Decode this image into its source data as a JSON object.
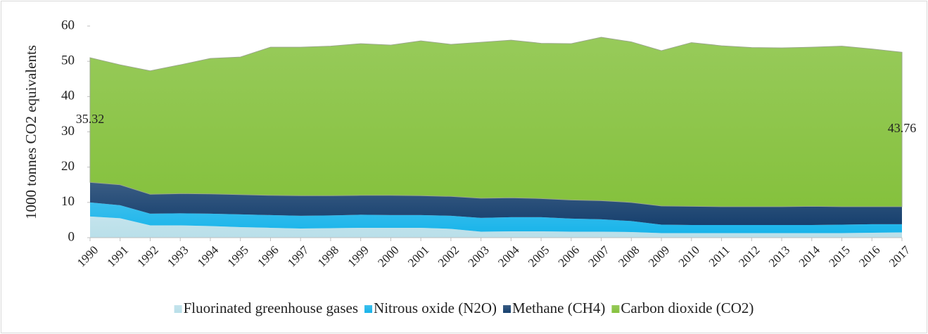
{
  "chart_data": {
    "type": "stacked_area",
    "y_label": "1000 tonnes CO2 equivalents",
    "categories": [
      "1990",
      "1991",
      "1992",
      "1993",
      "1994",
      "1995",
      "1996",
      "1997",
      "1998",
      "1999",
      "2000",
      "2001",
      "2002",
      "2003",
      "2004",
      "2005",
      "2006",
      "2007",
      "2008",
      "2009",
      "2010",
      "2011",
      "2012",
      "2013",
      "2014",
      "2015",
      "2016",
      "2017"
    ],
    "series": [
      {
        "name": "Fluorinated greenhouse gases",
        "color": "#b9dfe9",
        "values": [
          6,
          5.5,
          3.5,
          3.5,
          3.3,
          3,
          2.8,
          2.6,
          2.7,
          2.8,
          2.8,
          2.8,
          2.5,
          1.7,
          1.8,
          1.8,
          1.7,
          1.7,
          1.6,
          1.3,
          1.3,
          1.3,
          1.3,
          1.3,
          1.3,
          1.3,
          1.4,
          1.5
        ]
      },
      {
        "name": "Nitrous oxide (N2O)",
        "color": "#19b4ea",
        "values": [
          4,
          3.7,
          3.3,
          3.4,
          3.5,
          3.6,
          3.6,
          3.6,
          3.6,
          3.7,
          3.6,
          3.6,
          3.7,
          3.9,
          4,
          4,
          3.7,
          3.5,
          3.1,
          2.4,
          2.3,
          2.3,
          2.3,
          2.3,
          2.3,
          2.4,
          2.4,
          2.3
        ]
      },
      {
        "name": "Methane (CH4)",
        "color": "#17406e",
        "values": [
          5.7,
          5.8,
          5.5,
          5.6,
          5.6,
          5.6,
          5.6,
          5.7,
          5.6,
          5.5,
          5.6,
          5.5,
          5.5,
          5.6,
          5.5,
          5.3,
          5.3,
          5.3,
          5.3,
          5.3,
          5.3,
          5.2,
          5.2,
          5.2,
          5.3,
          5.1,
          5.0,
          5.0
        ]
      },
      {
        "name": "Carbon dioxide (CO2)",
        "color": "#85c13d",
        "values": [
          35.32,
          34,
          35,
          36.5,
          38.4,
          39,
          42,
          42.1,
          42.4,
          43,
          42.6,
          43.9,
          43.1,
          44.2,
          44.7,
          44,
          44.3,
          46.3,
          45.5,
          44,
          46.4,
          45.6,
          45.1,
          45,
          45.1,
          45.5,
          44.7,
          43.76
        ],
        "value_labels": [
          "35.32",
          null,
          null,
          null,
          null,
          null,
          null,
          null,
          null,
          null,
          null,
          null,
          null,
          null,
          null,
          null,
          null,
          null,
          null,
          null,
          null,
          null,
          null,
          null,
          null,
          null,
          null,
          "43.76"
        ]
      }
    ],
    "ylim": [
      0,
      60
    ],
    "yticks": [
      0,
      10,
      20,
      30,
      40,
      50,
      60
    ],
    "legend": "bottom"
  }
}
